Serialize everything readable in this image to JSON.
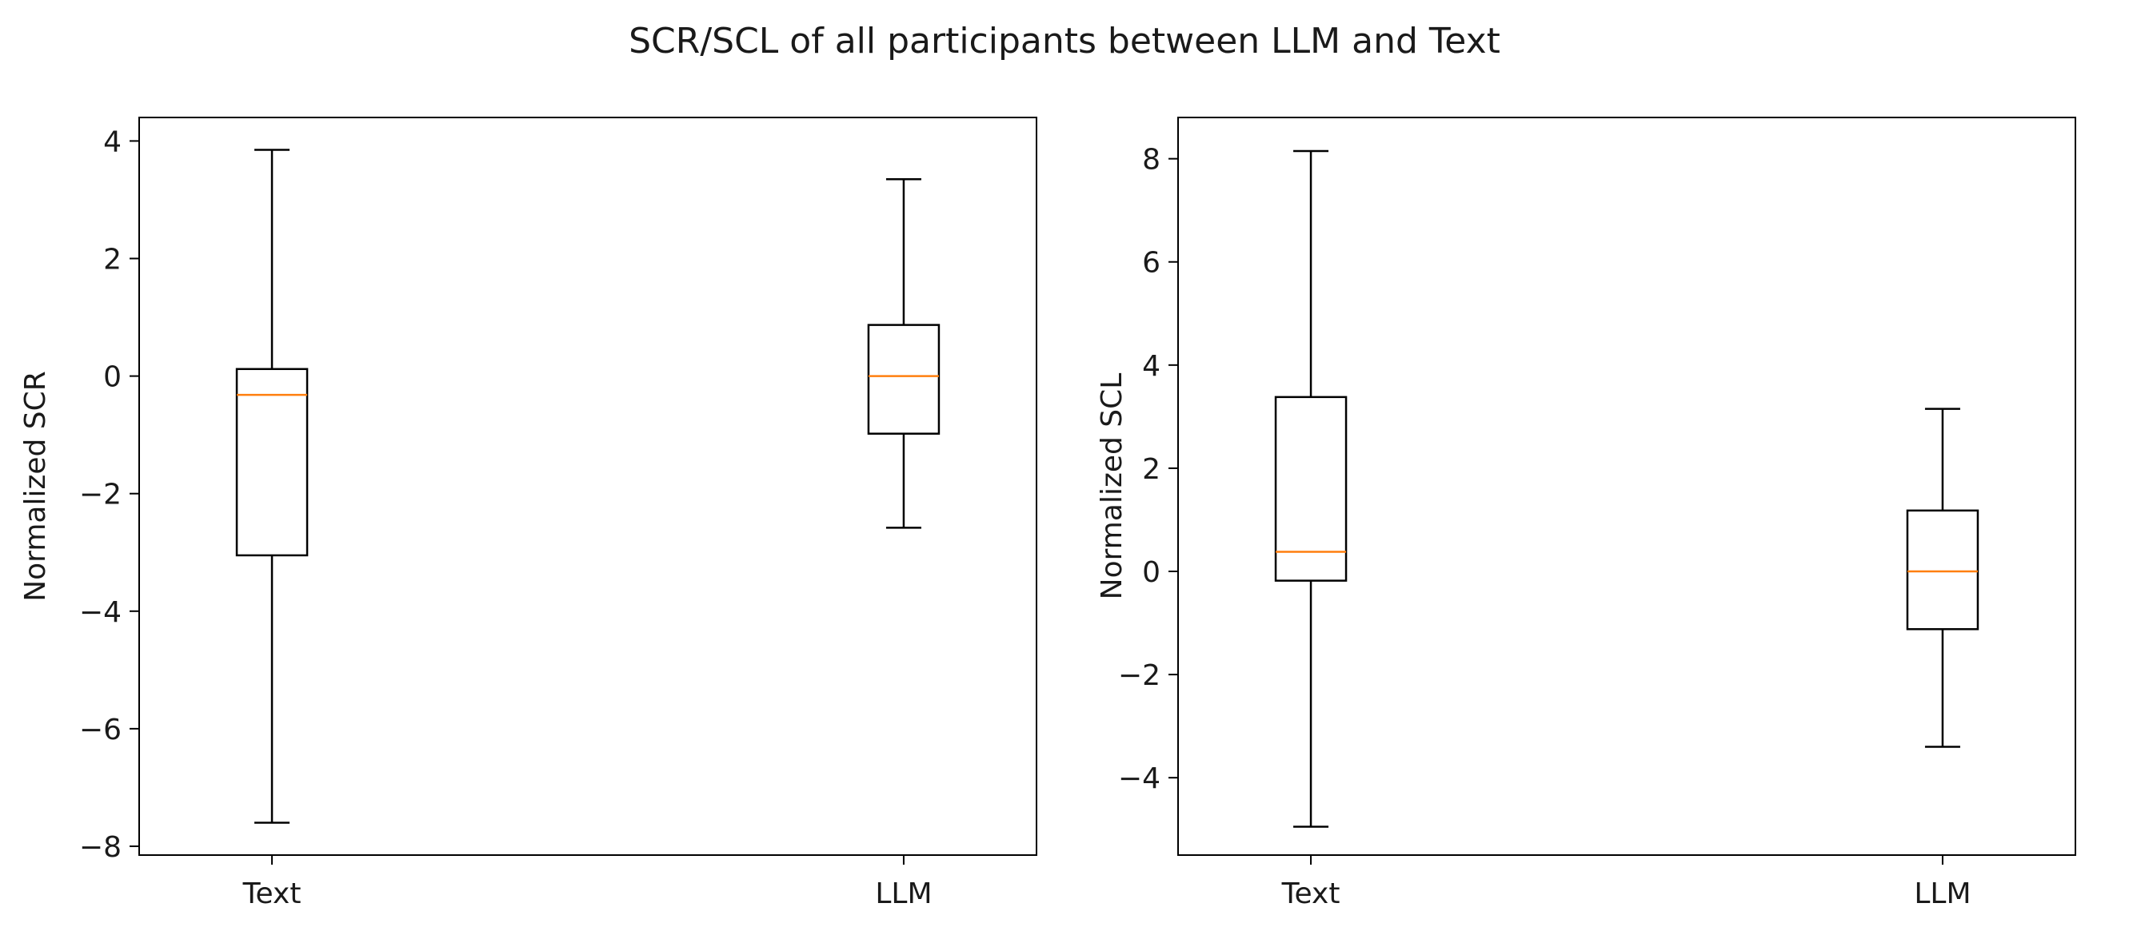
{
  "chart_data": {
    "title": "SCR/SCL of all participants between LLM and Text",
    "charts": [
      {
        "type": "box",
        "ylabel": "Normalized SCR",
        "xlabel": "",
        "categories": [
          "Text",
          "LLM"
        ],
        "ylim": [
          -8.15,
          4.4
        ],
        "yticks": [
          -8,
          -6,
          -4,
          -2,
          0,
          2,
          4
        ],
        "ytick_labels": [
          "−8",
          "−6",
          "−4",
          "−2",
          "0",
          "2",
          "4"
        ],
        "boxes": [
          {
            "name": "Text",
            "whisker_low": -7.6,
            "q1": -3.05,
            "median": -0.32,
            "q3": 0.12,
            "whisker_high": 3.85
          },
          {
            "name": "LLM",
            "whisker_low": -2.58,
            "q1": -0.98,
            "median": 0.0,
            "q3": 0.87,
            "whisker_high": 3.35
          }
        ],
        "colors": {
          "box": "#000000",
          "median": "#ff7f0e"
        }
      },
      {
        "type": "box",
        "ylabel": "Normalized SCL",
        "xlabel": "",
        "categories": [
          "Text",
          "LLM"
        ],
        "ylim": [
          -5.5,
          8.8
        ],
        "yticks": [
          -4,
          -2,
          0,
          2,
          4,
          6,
          8
        ],
        "ytick_labels": [
          "−4",
          "−2",
          "0",
          "2",
          "4",
          "6",
          "8"
        ],
        "boxes": [
          {
            "name": "Text",
            "whisker_low": -4.95,
            "q1": -0.18,
            "median": 0.38,
            "q3": 3.38,
            "whisker_high": 8.15
          },
          {
            "name": "LLM",
            "whisker_low": -3.4,
            "q1": -1.12,
            "median": 0.0,
            "q3": 1.18,
            "whisker_high": 3.15
          }
        ],
        "colors": {
          "box": "#000000",
          "median": "#ff7f0e"
        }
      }
    ]
  }
}
